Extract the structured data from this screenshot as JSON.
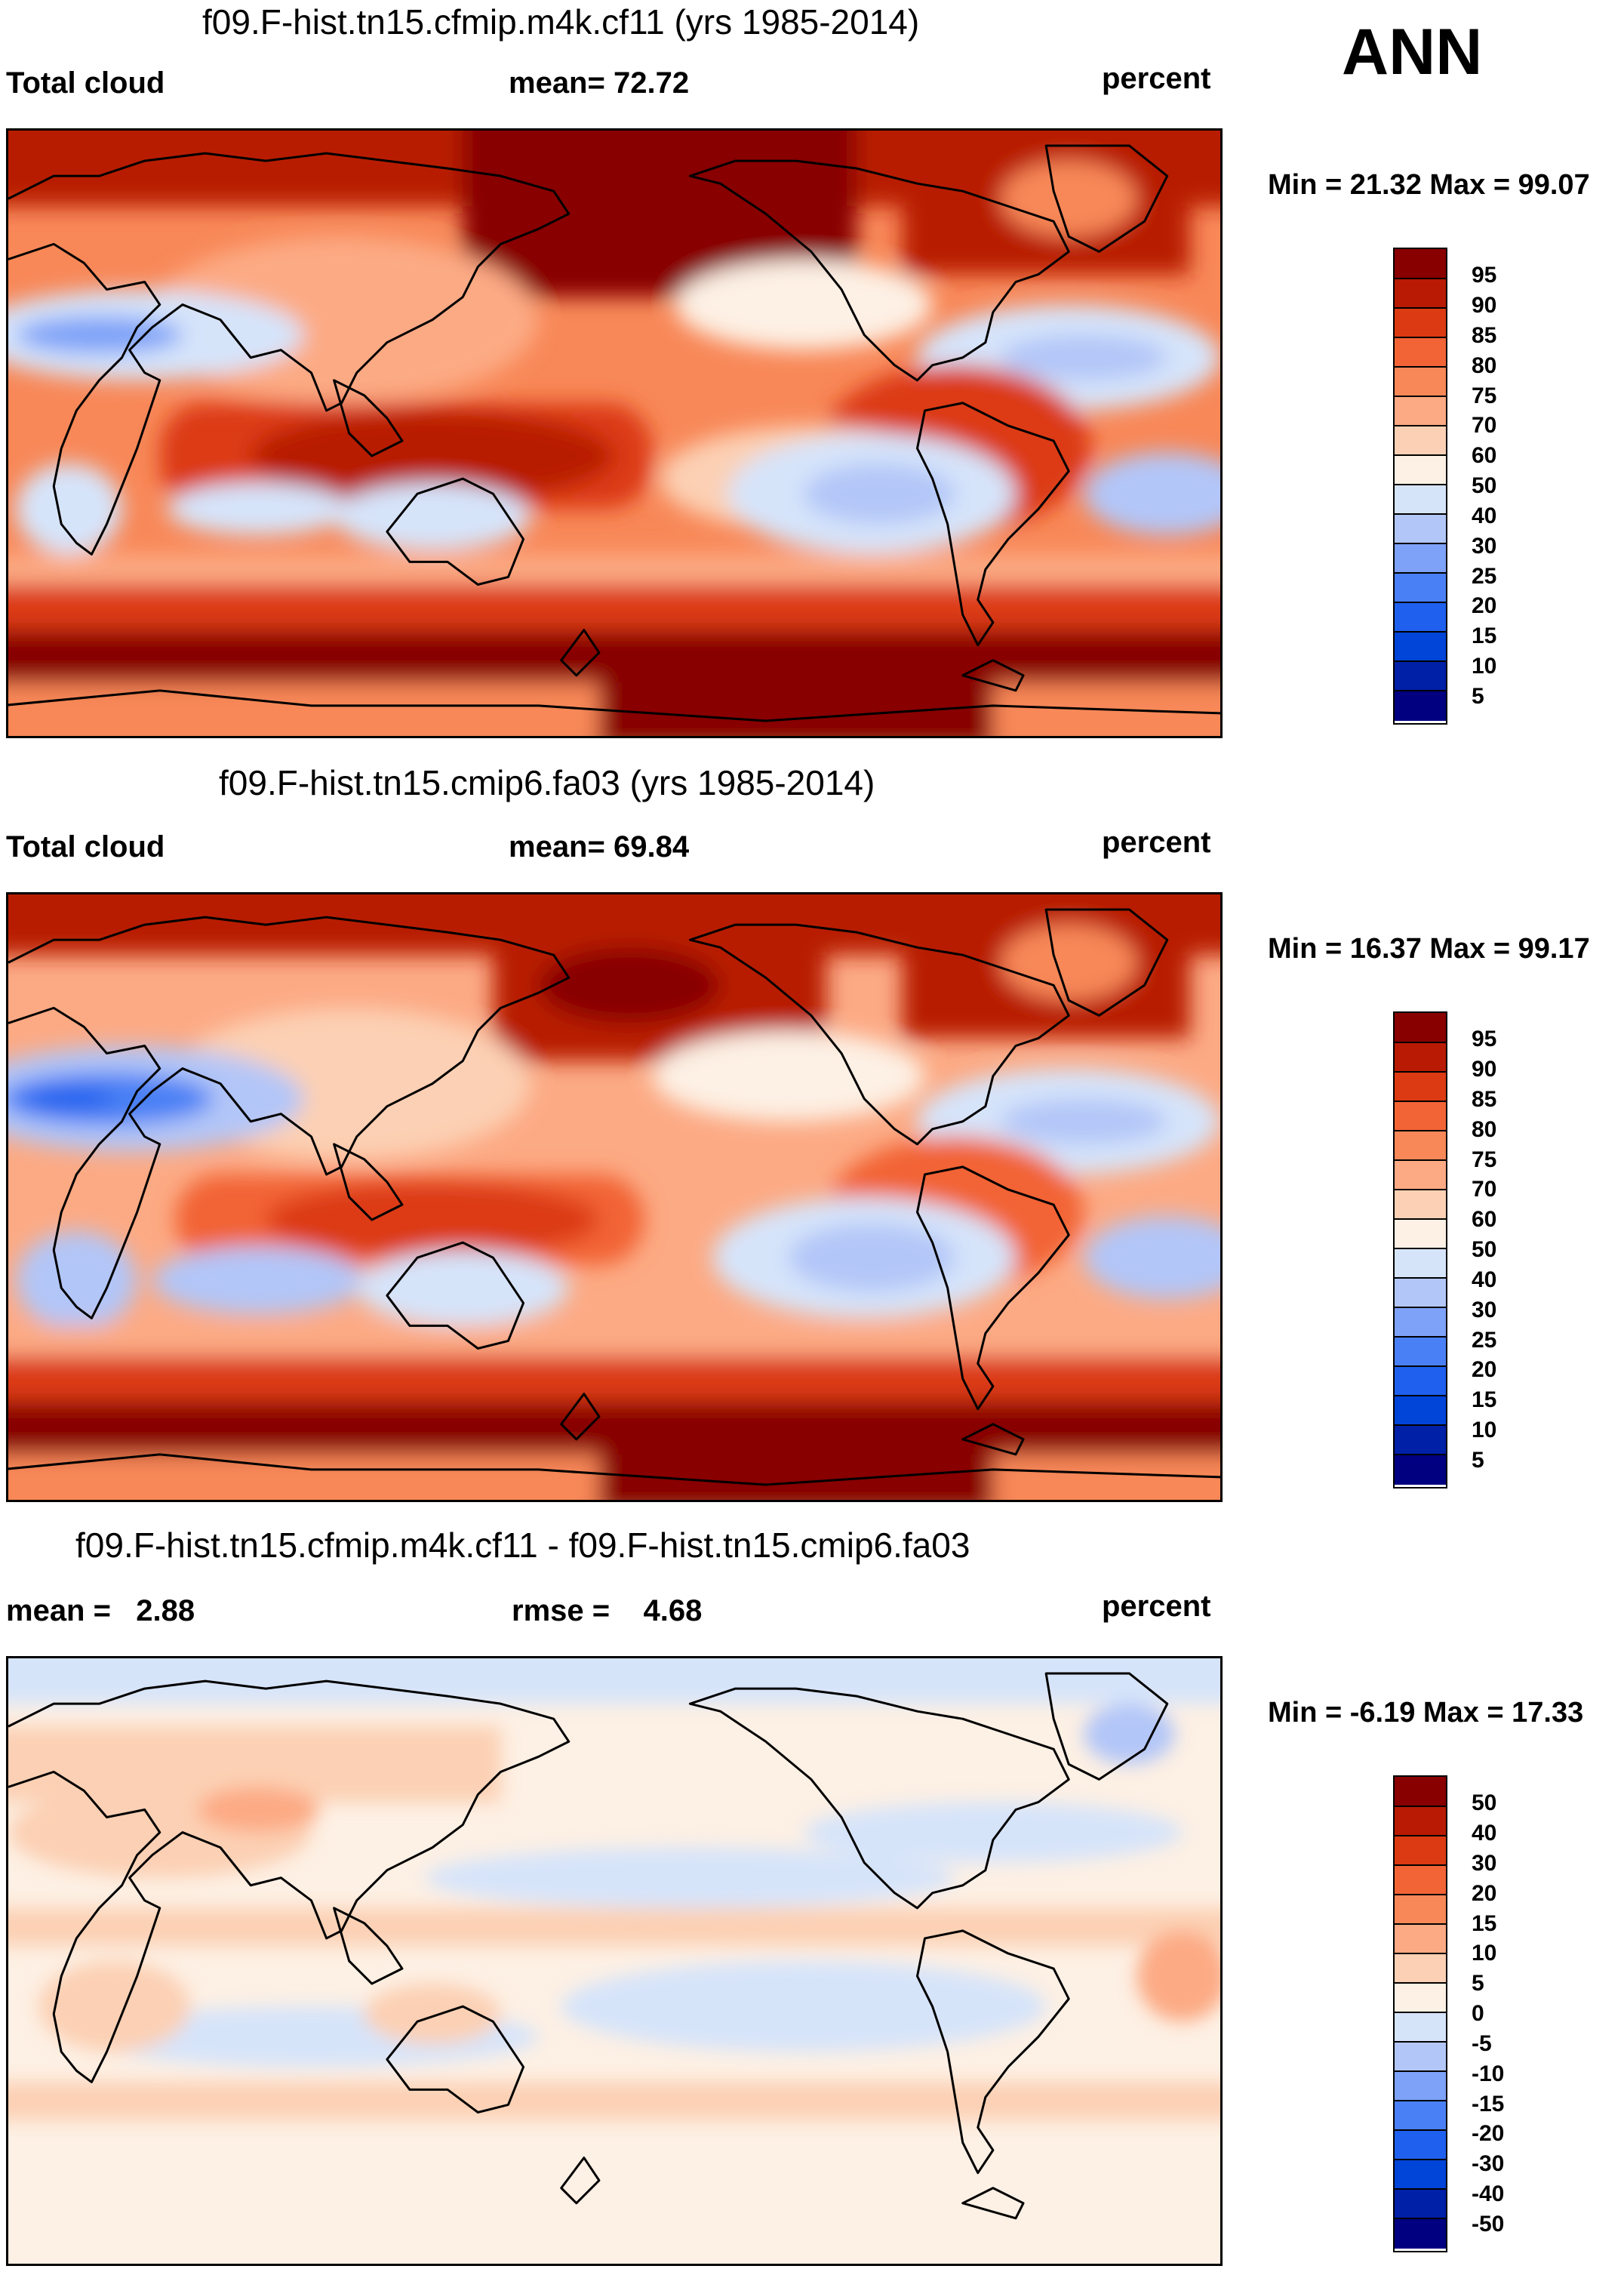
{
  "season": "ANN",
  "palette": {
    "abs": [
      "#000080",
      "#0020a8",
      "#0044d8",
      "#2060ee",
      "#4a80f5",
      "#7ea2f8",
      "#b2c6f8",
      "#d6e4fa",
      "#fdf0e4",
      "#fcd0b4",
      "#fcaa84",
      "#f88858",
      "#f26436",
      "#dc3a12",
      "#b81a04",
      "#880000"
    ],
    "diff": [
      "#000080",
      "#0020a8",
      "#0044d8",
      "#2060ee",
      "#4a80f5",
      "#7ea2f8",
      "#b2c6f8",
      "#d6e4fa",
      "#fdf0e4",
      "#fcd0b4",
      "#fcaa84",
      "#f88858",
      "#f26436",
      "#dc3a12",
      "#b81a04",
      "#880000"
    ]
  },
  "panels": [
    {
      "title": "f09.F-hist.tn15.cfmip.m4k.cf11 (yrs 1985-2014)",
      "left_label": "Total cloud",
      "stat_label": "mean=  72.72",
      "units": "percent",
      "minmax": "Min =  21.32 Max =  99.07",
      "levels": [
        "95",
        "90",
        "85",
        "80",
        "75",
        "70",
        "60",
        "50",
        "40",
        "30",
        "25",
        "20",
        "15",
        "10",
        "5"
      ]
    },
    {
      "title": "f09.F-hist.tn15.cmip6.fa03 (yrs 1985-2014)",
      "left_label": "Total cloud",
      "stat_label": "mean=  69.84",
      "units": "percent",
      "minmax": "Min =  16.37 Max =  99.17",
      "levels": [
        "95",
        "90",
        "85",
        "80",
        "75",
        "70",
        "60",
        "50",
        "40",
        "30",
        "25",
        "20",
        "15",
        "10",
        "5"
      ]
    },
    {
      "title": "f09.F-hist.tn15.cfmip.m4k.cf11 - f09.F-hist.tn15.cmip6.fa03",
      "left_label": "mean =   2.88",
      "stat_label": "rmse =    4.68",
      "units": "percent",
      "minmax": "Min =  -6.19 Max =  17.33",
      "levels": [
        "50",
        "40",
        "30",
        "20",
        "15",
        "10",
        "5",
        "0",
        "-5",
        "-10",
        "-15",
        "-20",
        "-30",
        "-40",
        "-50"
      ]
    }
  ]
}
